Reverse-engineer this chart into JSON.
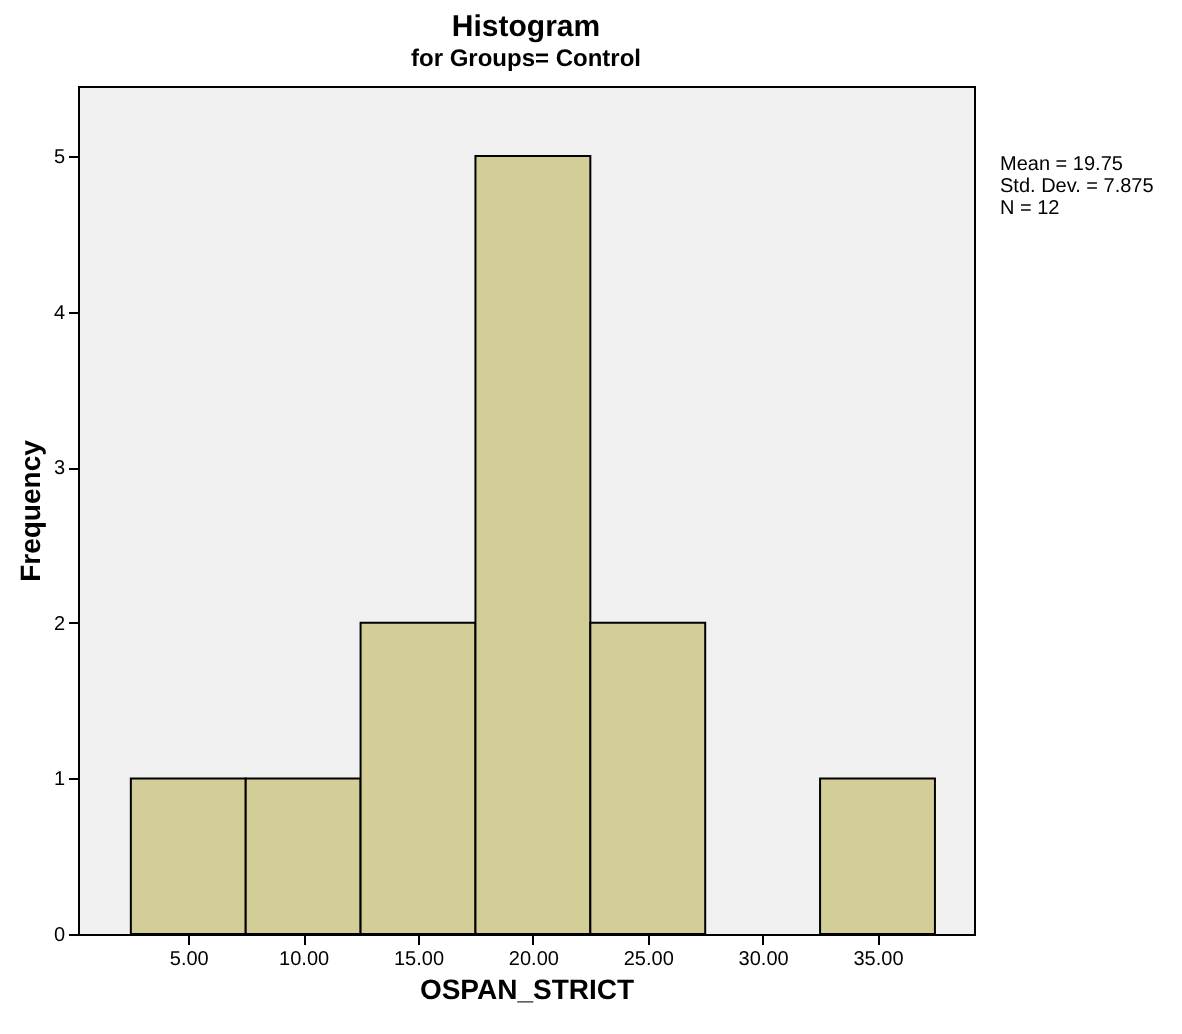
{
  "chart_data": {
    "type": "histogram",
    "title": "Histogram",
    "subtitle": "for Groups= Control",
    "xlabel": "OSPAN_STRICT",
    "ylabel": "Frequency",
    "bins": [
      2.5,
      7.5,
      12.5,
      17.5,
      22.5,
      27.5,
      32.5,
      37.5
    ],
    "values": [
      1,
      1,
      2,
      5,
      2,
      0,
      1
    ],
    "color": "#d3ce97",
    "xlim": [
      0.2,
      39.2
    ],
    "xticks": [
      {
        "value": 5,
        "label": "5.00"
      },
      {
        "value": 10,
        "label": "10.00"
      },
      {
        "value": 15,
        "label": "15.00"
      },
      {
        "value": 20,
        "label": "20.00"
      },
      {
        "value": 25,
        "label": "25.00"
      },
      {
        "value": 30,
        "label": "30.00"
      },
      {
        "value": 35,
        "label": "35.00"
      }
    ],
    "ylim": [
      0,
      5.45
    ],
    "yticks": [
      0,
      1,
      2,
      3,
      4,
      5
    ],
    "grid": false,
    "annotations": [
      "Mean = 19.75",
      "Std. Dev. = 7.875",
      "N = 12"
    ]
  }
}
